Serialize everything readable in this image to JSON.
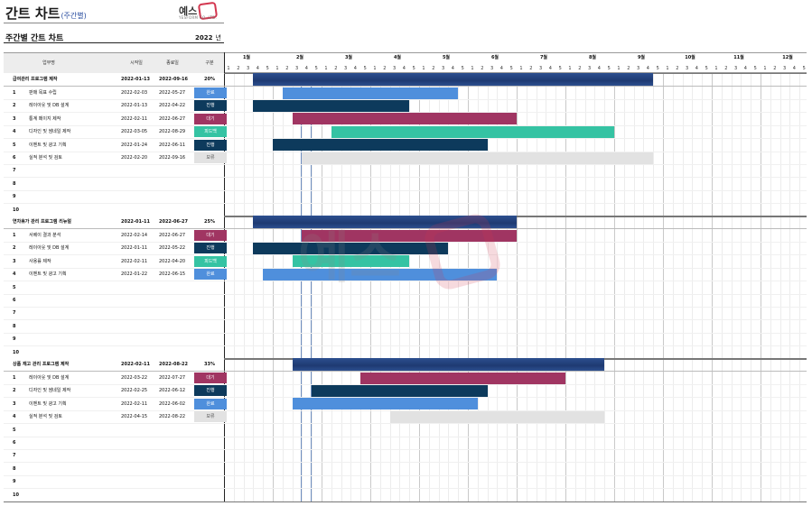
{
  "header": {
    "title": "간트 차트",
    "title_sub": "(주간별)",
    "subtitle": "주간별 간트 차트",
    "year": "2022",
    "year_unit": "년",
    "logo_word": "예스",
    "logo_small": "YESFORM CO.,LTD."
  },
  "columns": {
    "task": "업무명",
    "start": "시작일",
    "end": "종료일",
    "status": "구분"
  },
  "months": [
    "1월",
    "2월",
    "3월",
    "4월",
    "5월",
    "6월",
    "7월",
    "8월",
    "9월",
    "10월",
    "11월",
    "12월"
  ],
  "weeks": [
    "1",
    "2",
    "3",
    "4",
    "5"
  ],
  "colors": {
    "완료": "#4f8fdc",
    "진행": "#0d3a5c",
    "대기": "#a03562",
    "피드백": "#35c3a3",
    "보류": "#e2e2e2",
    "phase": "#2a4a87"
  },
  "phases": [
    {
      "name": "급여관리 프로그램 제작",
      "start": "2022-01-13",
      "end": "2022-09-16",
      "pct": "20%",
      "bar": {
        "from": 3,
        "to": 44
      },
      "tasks": [
        {
          "num": "1",
          "name": "판매 목표 수립",
          "start": "2022-02-03",
          "end": "2022-05-27",
          "status": "완료",
          "bar": {
            "from": 6,
            "to": 24
          }
        },
        {
          "num": "2",
          "name": "레이아웃 및 DB 설계",
          "start": "2022-01-13",
          "end": "2022-04-22",
          "status": "진행",
          "bar": {
            "from": 3,
            "to": 19
          }
        },
        {
          "num": "3",
          "name": "통계 페이지 제작",
          "start": "2022-02-11",
          "end": "2022-06-27",
          "status": "대기",
          "bar": {
            "from": 7,
            "to": 30
          }
        },
        {
          "num": "4",
          "name": "디자인 및 썸네일 제작",
          "start": "2022-03-05",
          "end": "2022-08-29",
          "status": "피드백",
          "bar": {
            "from": 11,
            "to": 40
          }
        },
        {
          "num": "5",
          "name": "이벤트 및 광고 기획",
          "start": "2022-01-24",
          "end": "2022-06-11",
          "status": "진행",
          "bar": {
            "from": 5,
            "to": 27
          }
        },
        {
          "num": "6",
          "name": "실적 분석 및 검토",
          "start": "2022-02-20",
          "end": "2022-09-16",
          "status": "보류",
          "bar": {
            "from": 8,
            "to": 44
          }
        },
        {
          "num": "7",
          "name": "",
          "start": "",
          "end": "",
          "status": ""
        },
        {
          "num": "8",
          "name": "",
          "start": "",
          "end": "",
          "status": ""
        },
        {
          "num": "9",
          "name": "",
          "start": "",
          "end": "",
          "status": ""
        },
        {
          "num": "10",
          "name": "",
          "start": "",
          "end": "",
          "status": ""
        }
      ]
    },
    {
      "name": "연차휴가 관리 프로그램 리뉴얼",
      "start": "2022-01-11",
      "end": "2022-06-27",
      "pct": "25%",
      "bar": {
        "from": 3,
        "to": 30
      },
      "tasks": [
        {
          "num": "1",
          "name": "서베이 결과 분석",
          "start": "2022-02-14",
          "end": "2022-06-27",
          "status": "대기",
          "bar": {
            "from": 8,
            "to": 30
          }
        },
        {
          "num": "2",
          "name": "레이아웃 및 DB 설계",
          "start": "2022-01-11",
          "end": "2022-05-22",
          "status": "진행",
          "bar": {
            "from": 3,
            "to": 23
          }
        },
        {
          "num": "3",
          "name": "사용률 제작",
          "start": "2022-02-11",
          "end": "2022-04-20",
          "status": "피드백",
          "bar": {
            "from": 7,
            "to": 19
          }
        },
        {
          "num": "4",
          "name": "이벤트 및 광고 기획",
          "start": "2022-01-22",
          "end": "2022-06-15",
          "status": "완료",
          "bar": {
            "from": 4,
            "to": 28
          }
        },
        {
          "num": "5",
          "name": "",
          "start": "",
          "end": "",
          "status": ""
        },
        {
          "num": "6",
          "name": "",
          "start": "",
          "end": "",
          "status": ""
        },
        {
          "num": "7",
          "name": "",
          "start": "",
          "end": "",
          "status": ""
        },
        {
          "num": "8",
          "name": "",
          "start": "",
          "end": "",
          "status": ""
        },
        {
          "num": "9",
          "name": "",
          "start": "",
          "end": "",
          "status": ""
        },
        {
          "num": "10",
          "name": "",
          "start": "",
          "end": "",
          "status": ""
        }
      ]
    },
    {
      "name": "상품 재고 관리 프로그램 제작",
      "start": "2022-02-11",
      "end": "2022-08-22",
      "pct": "33%",
      "bar": {
        "from": 7,
        "to": 39
      },
      "tasks": [
        {
          "num": "1",
          "name": "레이아웃 및 DB 설계",
          "start": "2022-03-22",
          "end": "2022-07-27",
          "status": "대기",
          "bar": {
            "from": 14,
            "to": 35
          }
        },
        {
          "num": "2",
          "name": "디자인 및 썸네일 제작",
          "start": "2022-02-25",
          "end": "2022-06-12",
          "status": "진행",
          "bar": {
            "from": 9,
            "to": 27
          }
        },
        {
          "num": "3",
          "name": "이벤트 및 광고 기획",
          "start": "2022-02-11",
          "end": "2022-06-02",
          "status": "완료",
          "bar": {
            "from": 7,
            "to": 26
          }
        },
        {
          "num": "4",
          "name": "실적 분석 및 검토",
          "start": "2022-04-15",
          "end": "2022-08-22",
          "status": "보류",
          "bar": {
            "from": 17,
            "to": 39
          }
        },
        {
          "num": "5",
          "name": "",
          "start": "",
          "end": "",
          "status": ""
        },
        {
          "num": "6",
          "name": "",
          "start": "",
          "end": "",
          "status": ""
        },
        {
          "num": "7",
          "name": "",
          "start": "",
          "end": "",
          "status": ""
        },
        {
          "num": "8",
          "name": "",
          "start": "",
          "end": "",
          "status": ""
        },
        {
          "num": "9",
          "name": "",
          "start": "",
          "end": "",
          "status": ""
        },
        {
          "num": "10",
          "name": "",
          "start": "",
          "end": "",
          "status": ""
        }
      ]
    }
  ]
}
